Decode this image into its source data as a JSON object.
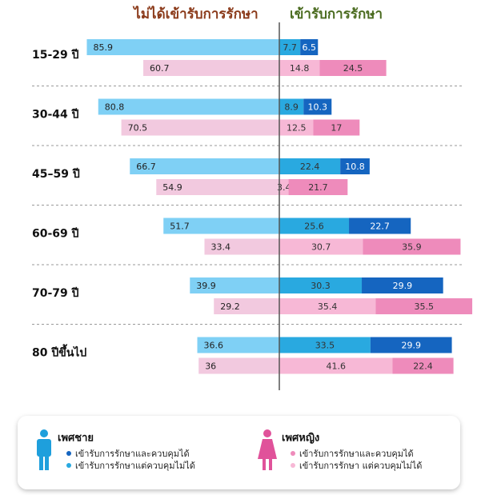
{
  "chart_data": {
    "type": "diverging_bar",
    "left_title": "ไม่ได้เข้ารับการรักษา",
    "right_title": "เข้ารับการรักษา",
    "left_title_color": "#8b3a1a",
    "right_title_color": "#4a6b1f",
    "categories": [
      "15-29 ปี",
      "30-44 ปี",
      "45–59 ปี",
      "60-69 ปี",
      "70-79 ปี",
      "80 ปีขึ้นไป"
    ],
    "legend_groups": [
      {
        "title": "เพศชาย",
        "color": "#1e9fdc"
      },
      {
        "title": "เพศหญิง",
        "color": "#e0529a"
      }
    ],
    "series": [
      {
        "side": "left",
        "group": 0,
        "color": "#7fd0f5",
        "values": [
          85.9,
          80.8,
          66.7,
          51.7,
          39.9,
          36.6
        ]
      },
      {
        "side": "left",
        "group": 1,
        "color": "#f2c9df",
        "values": [
          60.7,
          70.5,
          54.9,
          33.4,
          29.2,
          36
        ]
      },
      {
        "side": "right",
        "group": 0,
        "name": "เข้ารับการรักษาแต่ควบคุมไม่ได้",
        "color": "#29a9e0",
        "values": [
          7.7,
          8.9,
          22.4,
          25.6,
          30.3,
          33.5
        ]
      },
      {
        "side": "right",
        "group": 0,
        "name": "เข้ารับการรักษาและควบคุมได้",
        "color": "#1565c0",
        "values": [
          6.5,
          10.3,
          10.8,
          22.7,
          29.9,
          29.9
        ]
      },
      {
        "side": "right",
        "group": 1,
        "name": "เข้ารับการรักษา แต่ควบคุมไม่ได้",
        "color": "#f7b8d6",
        "values": [
          14.8,
          12.5,
          3.4,
          30.7,
          35.4,
          41.6
        ]
      },
      {
        "side": "right",
        "group": 1,
        "name": "เข้ารับการรักษาและควบคุมได้",
        "color": "#ee8bbb",
        "values": [
          24.5,
          17,
          21.7,
          35.9,
          35.5,
          22.4
        ]
      }
    ]
  }
}
